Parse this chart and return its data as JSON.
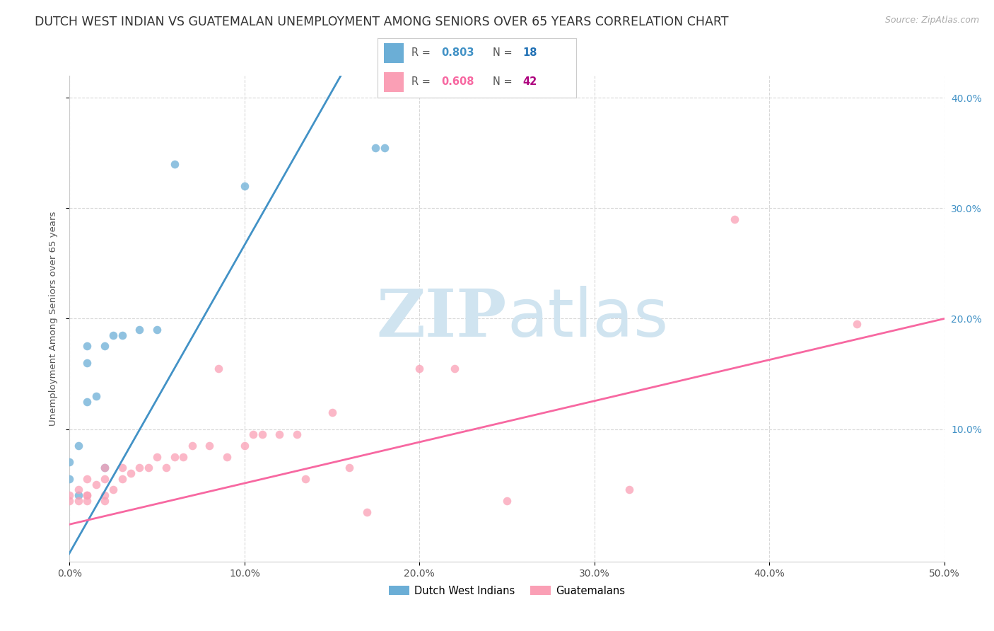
{
  "title": "DUTCH WEST INDIAN VS GUATEMALAN UNEMPLOYMENT AMONG SENIORS OVER 65 YEARS CORRELATION CHART",
  "source_text": "Source: ZipAtlas.com",
  "ylabel": "Unemployment Among Seniors over 65 years",
  "xlim": [
    0.0,
    0.5
  ],
  "ylim": [
    -0.02,
    0.42
  ],
  "xticks": [
    0.0,
    0.1,
    0.2,
    0.3,
    0.4,
    0.5
  ],
  "xtick_labels": [
    "0.0%",
    "10.0%",
    "20.0%",
    "30.0%",
    "40.0%",
    "50.0%"
  ],
  "yticks": [
    0.1,
    0.2,
    0.3,
    0.4
  ],
  "ytick_labels": [
    "10.0%",
    "20.0%",
    "30.0%",
    "40.0%"
  ],
  "blue_color": "#6baed6",
  "pink_color": "#fa9fb5",
  "blue_label": "Dutch West Indians",
  "pink_label": "Guatemalans",
  "blue_R": "0.803",
  "blue_N": "18",
  "pink_R": "0.608",
  "pink_N": "42",
  "legend_R_color": "#4292c6",
  "legend_N_color": "#2171b5",
  "legend_R2_color": "#f768a1",
  "legend_N2_color": "#ae017e",
  "watermark_zip": "ZIP",
  "watermark_atlas": "atlas",
  "watermark_color": "#d0e4f0",
  "blue_scatter_x": [
    0.0,
    0.0,
    0.005,
    0.005,
    0.01,
    0.01,
    0.01,
    0.015,
    0.02,
    0.02,
    0.025,
    0.03,
    0.04,
    0.05,
    0.06,
    0.1,
    0.175,
    0.18
  ],
  "blue_scatter_y": [
    0.055,
    0.07,
    0.04,
    0.085,
    0.125,
    0.16,
    0.175,
    0.13,
    0.065,
    0.175,
    0.185,
    0.185,
    0.19,
    0.19,
    0.34,
    0.32,
    0.355,
    0.355
  ],
  "pink_scatter_x": [
    0.0,
    0.0,
    0.005,
    0.005,
    0.01,
    0.01,
    0.01,
    0.01,
    0.015,
    0.02,
    0.02,
    0.02,
    0.02,
    0.025,
    0.03,
    0.03,
    0.035,
    0.04,
    0.045,
    0.05,
    0.055,
    0.06,
    0.065,
    0.07,
    0.08,
    0.085,
    0.09,
    0.1,
    0.105,
    0.11,
    0.12,
    0.13,
    0.135,
    0.15,
    0.16,
    0.17,
    0.2,
    0.22,
    0.25,
    0.32,
    0.38,
    0.45
  ],
  "pink_scatter_y": [
    0.035,
    0.04,
    0.035,
    0.045,
    0.035,
    0.04,
    0.04,
    0.055,
    0.05,
    0.035,
    0.04,
    0.055,
    0.065,
    0.045,
    0.055,
    0.065,
    0.06,
    0.065,
    0.065,
    0.075,
    0.065,
    0.075,
    0.075,
    0.085,
    0.085,
    0.155,
    0.075,
    0.085,
    0.095,
    0.095,
    0.095,
    0.095,
    0.055,
    0.115,
    0.065,
    0.025,
    0.155,
    0.155,
    0.035,
    0.045,
    0.29,
    0.195
  ],
  "blue_line_x": [
    -0.01,
    0.155
  ],
  "blue_line_y": [
    -0.04,
    0.42
  ],
  "pink_line_x": [
    -0.01,
    0.5
  ],
  "pink_line_y": [
    0.01,
    0.2
  ],
  "background_color": "#ffffff",
  "grid_color": "#d8d8d8",
  "title_fontsize": 12.5,
  "axis_fontsize": 9.5,
  "tick_fontsize": 10,
  "legend_fontsize": 10.5
}
